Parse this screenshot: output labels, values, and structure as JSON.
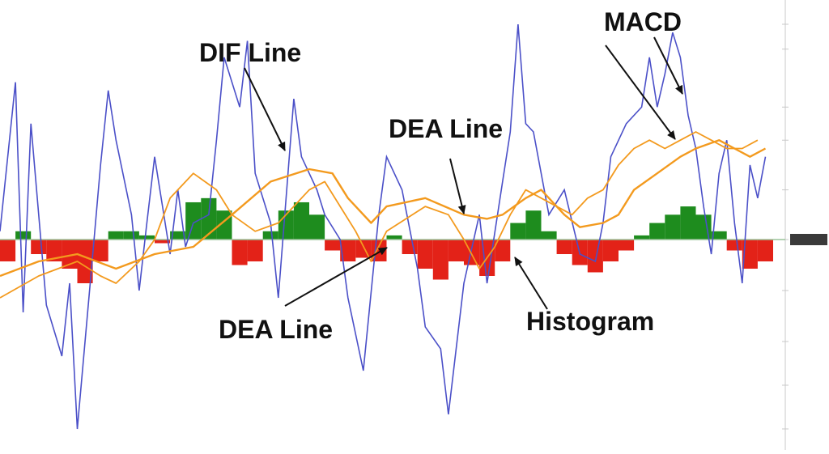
{
  "colors": {
    "dif_line": "#4b50c8",
    "dea_line": "#f39a1e",
    "hist_positive": "#1e8c1e",
    "hist_negative": "#e32218",
    "zero_line": "#9ac49a",
    "axis": "#c8c8c8",
    "annotation": "#111111"
  },
  "annotations": [
    {
      "id": "dif-line-label",
      "text": "DIF Line"
    },
    {
      "id": "macd-label",
      "text": "MACD"
    },
    {
      "id": "dea-line-label-top",
      "text": "DEA Line"
    },
    {
      "id": "dea-line-label-bottom",
      "text": "DEA Line"
    },
    {
      "id": "histogram-label",
      "text": "Histogram"
    }
  ],
  "chart_data": {
    "type": "line",
    "title": "",
    "xlabel": "",
    "ylabel": "",
    "x_range": [
      0,
      100
    ],
    "ylim": [
      -2.6,
      2.6
    ],
    "grid": false,
    "legend": "none",
    "y_axis_side": "right",
    "y_ticks": [
      2.6,
      2.3,
      1.6,
      1.2,
      0.6,
      0,
      -0.7,
      -1.4,
      -2.0,
      -2.6
    ],
    "y_tick_labels_legible": false,
    "series": [
      {
        "role": "dif",
        "style": "line",
        "x": [
          0,
          2,
          3,
          4,
          5,
          6,
          8,
          9,
          10,
          12,
          13,
          14,
          15,
          17,
          18,
          19,
          20,
          22,
          23,
          24,
          25,
          27,
          28,
          29,
          31,
          32,
          33,
          35,
          36,
          38,
          39,
          41,
          42,
          44,
          45,
          47,
          49,
          50,
          52,
          54,
          55,
          57,
          58,
          60,
          62,
          63,
          65,
          66,
          67,
          68,
          69,
          71,
          73,
          75,
          77,
          78,
          79,
          81,
          83,
          84,
          85,
          86,
          87,
          88,
          89,
          90,
          91,
          92,
          93,
          94,
          95,
          96,
          97,
          98,
          99
        ],
        "y": [
          0.1,
          1.9,
          -1.0,
          1.4,
          0.3,
          -0.9,
          -1.6,
          -0.6,
          -2.6,
          -0.2,
          0.9,
          1.8,
          1.2,
          0.3,
          -0.7,
          0.2,
          1.0,
          -0.2,
          0.6,
          -0.1,
          0.2,
          0.3,
          1.2,
          2.2,
          1.6,
          2.4,
          0.8,
          0.2,
          -0.8,
          1.7,
          1.0,
          0.6,
          0.3,
          0.0,
          -0.8,
          -1.8,
          0.3,
          1.0,
          0.6,
          -0.4,
          -1.2,
          -1.5,
          -2.4,
          -0.6,
          0.3,
          -0.6,
          0.7,
          1.3,
          2.6,
          1.4,
          1.3,
          0.3,
          0.6,
          -0.2,
          -0.3,
          0.2,
          1.0,
          1.4,
          1.6,
          2.2,
          1.6,
          2.0,
          2.5,
          2.2,
          1.5,
          1.1,
          0.4,
          -0.2,
          0.8,
          1.2,
          0.2,
          -0.6,
          0.9,
          0.5,
          1.0
        ]
      },
      {
        "role": "dea",
        "style": "line",
        "x": [
          0,
          5,
          10,
          15,
          20,
          25,
          30,
          35,
          40,
          43,
          45,
          48,
          50,
          55,
          60,
          63,
          65,
          68,
          70,
          73,
          75,
          78,
          80,
          82,
          85,
          88,
          90,
          93,
          95,
          97,
          99
        ],
        "y": [
          -0.5,
          -0.3,
          -0.2,
          -0.4,
          -0.2,
          -0.1,
          0.3,
          0.7,
          0.85,
          0.8,
          0.5,
          0.2,
          0.4,
          0.5,
          0.3,
          0.25,
          0.3,
          0.5,
          0.6,
          0.3,
          0.15,
          0.2,
          0.3,
          0.6,
          0.8,
          1.0,
          1.1,
          1.2,
          1.1,
          1.0,
          1.1
        ]
      },
      {
        "role": "dea-secondary",
        "style": "line",
        "x": [
          0,
          5,
          10,
          13,
          15,
          18,
          20,
          22,
          25,
          28,
          30,
          33,
          36,
          40,
          42,
          44,
          46,
          48,
          50,
          55,
          58,
          60,
          62,
          64,
          66,
          68,
          70,
          72,
          74,
          76,
          78,
          80,
          82,
          84,
          86,
          88,
          90,
          92,
          94,
          96,
          98
        ],
        "y": [
          -0.8,
          -0.5,
          -0.3,
          -0.5,
          -0.6,
          -0.3,
          0.0,
          0.5,
          0.8,
          0.6,
          0.3,
          0.1,
          0.2,
          0.6,
          0.7,
          0.4,
          0.1,
          -0.3,
          0.1,
          0.4,
          0.3,
          0.0,
          -0.4,
          -0.1,
          0.3,
          0.6,
          0.5,
          0.4,
          0.3,
          0.5,
          0.6,
          0.9,
          1.1,
          1.2,
          1.1,
          1.2,
          1.3,
          1.2,
          1.1,
          1.1,
          1.2
        ]
      },
      {
        "role": "histogram",
        "style": "bar",
        "x": [
          0,
          2,
          4,
          6,
          8,
          10,
          12,
          14,
          16,
          18,
          20,
          22,
          24,
          26,
          28,
          30,
          32,
          34,
          36,
          38,
          40,
          42,
          44,
          46,
          48,
          50,
          52,
          54,
          56,
          58,
          60,
          62,
          64,
          66,
          68,
          70,
          72,
          74,
          76,
          78,
          80,
          82,
          84,
          86,
          88,
          90,
          92,
          94,
          96,
          98
        ],
        "y": [
          -0.3,
          0.1,
          -0.2,
          -0.3,
          -0.4,
          -0.6,
          -0.3,
          0.1,
          0.1,
          0.05,
          -0.05,
          0.1,
          0.45,
          0.5,
          0.35,
          -0.35,
          -0.3,
          0.1,
          0.35,
          0.45,
          0.3,
          -0.15,
          -0.3,
          -0.25,
          -0.3,
          0.05,
          -0.2,
          -0.4,
          -0.55,
          -0.3,
          -0.35,
          -0.5,
          -0.3,
          0.2,
          0.35,
          0.1,
          -0.2,
          -0.35,
          -0.45,
          -0.3,
          -0.15,
          0.05,
          0.2,
          0.3,
          0.4,
          0.3,
          0.1,
          -0.15,
          -0.4,
          -0.3
        ]
      }
    ]
  }
}
